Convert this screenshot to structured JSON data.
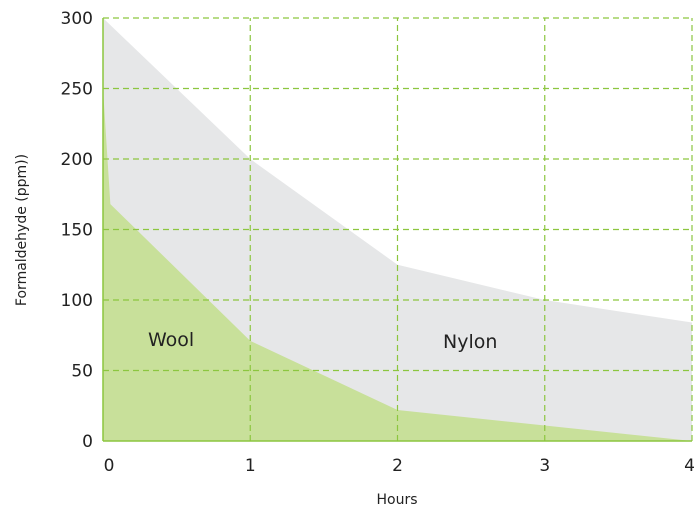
{
  "chart_data": {
    "type": "area",
    "title": "",
    "xlabel": "Hours",
    "ylabel": "Formaldehyde (ppm))",
    "xlim": [
      0,
      4
    ],
    "ylim": [
      0,
      300
    ],
    "x_ticks": [
      "0",
      "1",
      "2",
      "3",
      "4"
    ],
    "y_ticks": [
      "0",
      "50",
      "100",
      "150",
      "200",
      "250",
      "300"
    ],
    "grid": true,
    "legend": "none (series labeled inside areas)",
    "series": [
      {
        "name": "Nylon",
        "color": "#e6e7e8",
        "points": [
          [
            0,
            300
          ],
          [
            1,
            200
          ],
          [
            2,
            125
          ],
          [
            3,
            100
          ],
          [
            4,
            84
          ]
        ]
      },
      {
        "name": "Wool",
        "color": "#c8e09a",
        "points": [
          [
            0,
            250
          ],
          [
            0.05,
            168
          ],
          [
            1,
            71
          ],
          [
            2,
            22
          ],
          [
            3,
            11
          ],
          [
            4,
            0
          ]
        ]
      }
    ],
    "gridline_color": "#8cc63f",
    "axis_color": "#8cc63f"
  }
}
